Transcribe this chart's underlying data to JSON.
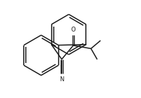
{
  "background_color": "#ffffff",
  "line_color": "#1a1a1a",
  "line_width": 1.1,
  "fig_width": 2.03,
  "fig_height": 1.4,
  "dpi": 100,
  "xlim": [
    0,
    10
  ],
  "ylim": [
    0,
    7
  ]
}
